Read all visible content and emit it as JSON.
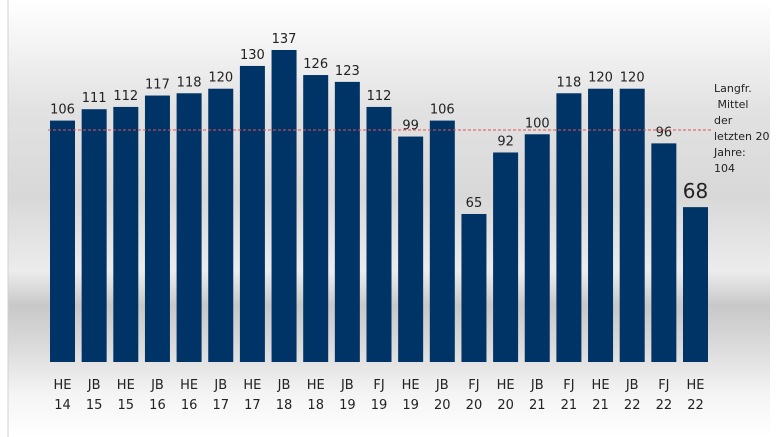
{
  "chart_data": {
    "type": "bar",
    "title": "",
    "xlabel": "",
    "ylabel": "",
    "ylim": [
      0,
      137
    ],
    "grid": false,
    "categories": [
      [
        "HE",
        "14"
      ],
      [
        "JB",
        "15"
      ],
      [
        "HE",
        "15"
      ],
      [
        "JB",
        "16"
      ],
      [
        "HE",
        "16"
      ],
      [
        "JB",
        "17"
      ],
      [
        "HE",
        "17"
      ],
      [
        "JB",
        "18"
      ],
      [
        "HE",
        "18"
      ],
      [
        "JB",
        "19"
      ],
      [
        "FJ",
        "19"
      ],
      [
        "HE",
        "19"
      ],
      [
        "JB",
        "20"
      ],
      [
        "FJ",
        "20"
      ],
      [
        "HE",
        "20"
      ],
      [
        "JB",
        "21"
      ],
      [
        "FJ",
        "21"
      ],
      [
        "HE",
        "21"
      ],
      [
        "JB",
        "22"
      ],
      [
        "FJ",
        "22"
      ],
      [
        "HE",
        "22"
      ]
    ],
    "values": [
      106,
      111,
      112,
      117,
      118,
      120,
      130,
      137,
      126,
      123,
      112,
      99,
      106,
      65,
      92,
      100,
      118,
      120,
      120,
      96,
      68
    ],
    "reference_line": {
      "value": 104,
      "label_lines": [
        "Langfr.",
        " Mittel",
        "der",
        "letzten 20",
        "Jahre:",
        "104"
      ]
    },
    "colors": {
      "bar": "#003366",
      "reference": "#e05050",
      "text": "#222222"
    }
  }
}
